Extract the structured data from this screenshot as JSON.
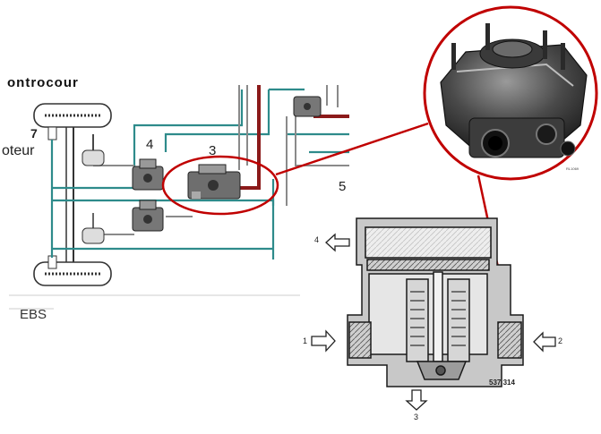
{
  "schematic": {
    "header_cut_text": "ontrocour",
    "side_cut_text": "oteur",
    "bottom_cut_text": "EBS",
    "callouts": [
      "7",
      "4",
      "3",
      "5"
    ]
  },
  "photo": {
    "ref_code": "RL1069"
  },
  "cutaway": {
    "ports": [
      "4",
      "1",
      "2",
      "3"
    ],
    "part_number": "537 314"
  },
  "colors": {
    "teal_line": "#2e8b8b",
    "brake_line": "#8b1a1a",
    "grey_line": "#8a8a8a",
    "highlight": "#c00000",
    "cutaway_fill": "#c8c8c8",
    "cutaway_outline": "#1a1a1a"
  }
}
